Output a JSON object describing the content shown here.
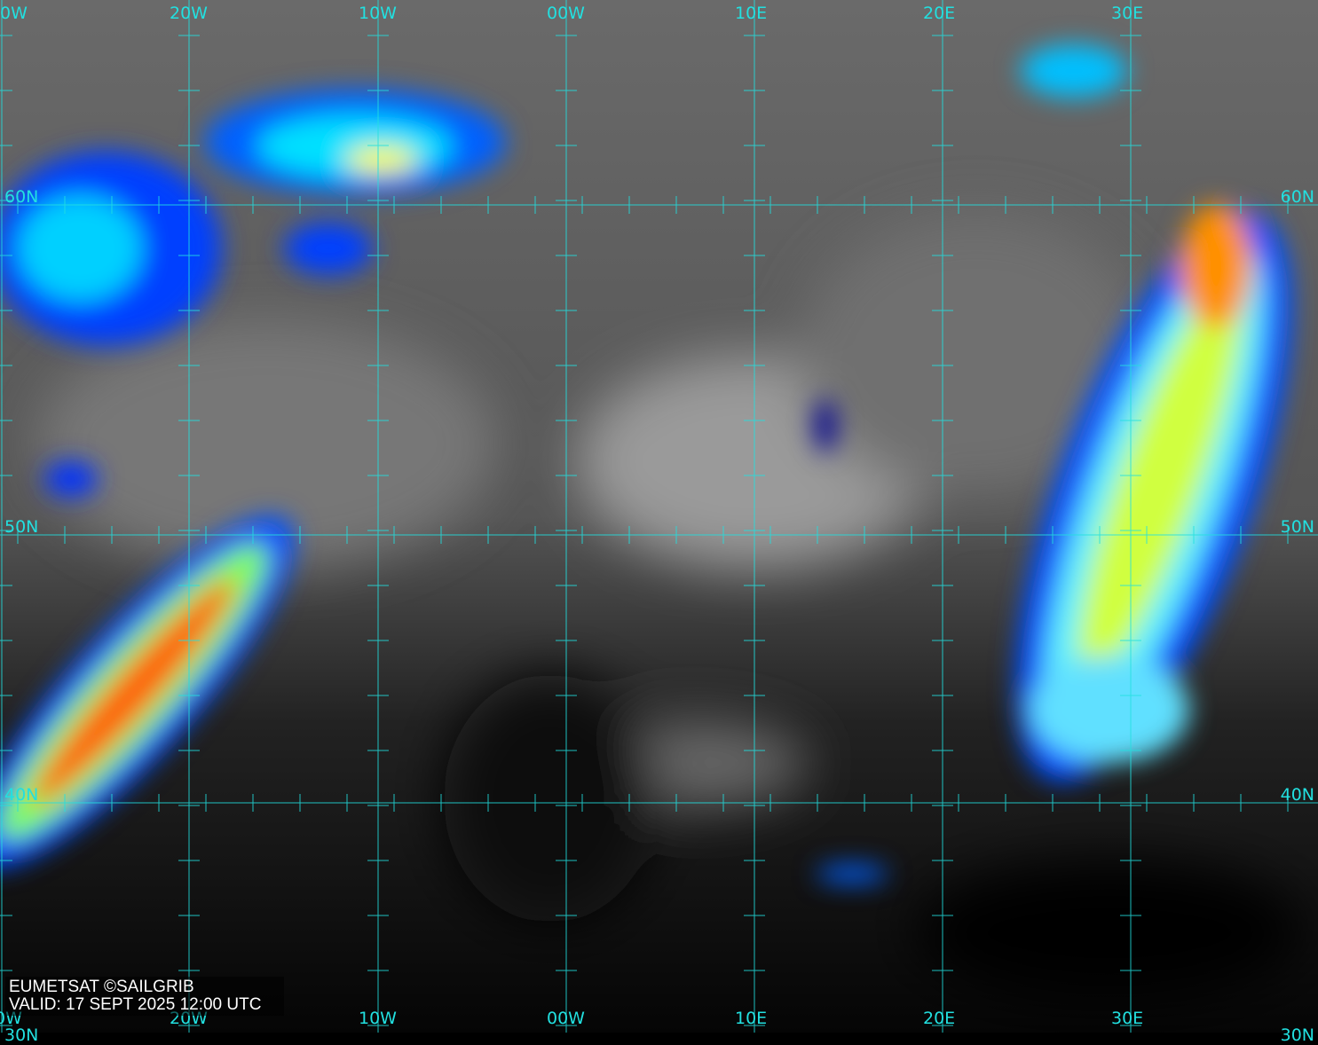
{
  "map": {
    "type": "infrared satellite image with lat/lon grid",
    "grid_color": "#22e0e0",
    "coastline_color": "#ffffff",
    "top_lon_labels": [
      "0W",
      "20W",
      "10W",
      "00W",
      "10E",
      "20E",
      "30E"
    ],
    "bottom_lon_labels": [
      "0W",
      "20W",
      "10W",
      "00W",
      "10E",
      "20E",
      "30E"
    ],
    "left_lat_labels": [
      "60N",
      "50N",
      "40N",
      "30N"
    ],
    "right_lat_labels": [
      "60N",
      "50N",
      "40N",
      "30N"
    ],
    "cloud_color_scale": [
      "#0000c0",
      "#0060ff",
      "#00e0ff",
      "#a0ff60",
      "#ffff00",
      "#ff8000",
      "#ff2000"
    ]
  },
  "caption": {
    "line1": "EUMETSAT ©SAILGRIB",
    "line2": "VALID:  17 SEPT 2025 12:00 UTC"
  }
}
